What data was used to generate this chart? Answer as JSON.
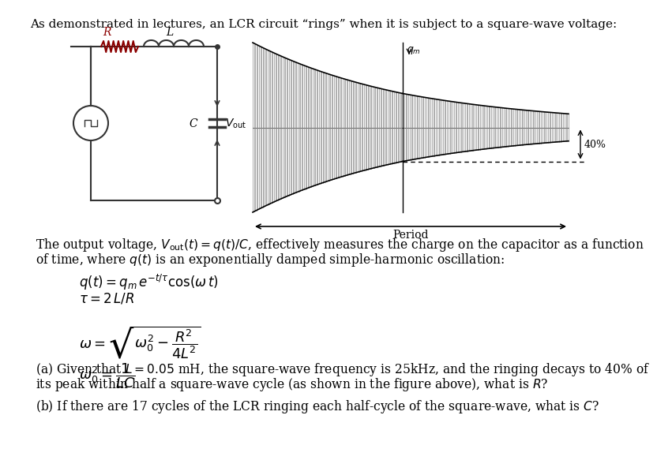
{
  "title": "As demonstrated in lectures, an LCR circuit “rings” when it is subject to a square-wave voltage:",
  "para1a": "The output voltage, $V_{\\mathrm{out}}(t) = q(t)/C$, effectively measures the charge on the capacitor as a function",
  "para1b": "of time, where $q(t)$ is an exponentially damped simple-harmonic oscillation:",
  "eq1": "$q(t) = q_m\\, e^{-t/\\tau}\\cos(\\omega\\, t)$",
  "eq2": "$\\tau = 2\\,L/R$",
  "eq3": "$\\omega = \\sqrt{\\omega_0^2 - \\dfrac{R^2}{4L^2}}$",
  "eq4": "$\\omega_0^2 = \\dfrac{1}{LC}$",
  "qa1": "(a) Given that $L = 0.05$ mH, the square-wave frequency is 25kHz, and the ringing decays to 40% of",
  "qa2": "its peak within half a square-wave cycle (as shown in the figure above), what is $R$?",
  "qb": "(b) If there are 17 cycles of the LCR ringing each half-cycle of the square-wave, what is $C$?",
  "bg_color": "#ffffff",
  "text_color": "#000000",
  "resistor_color": "#8B0000",
  "wire_color": "#333333"
}
